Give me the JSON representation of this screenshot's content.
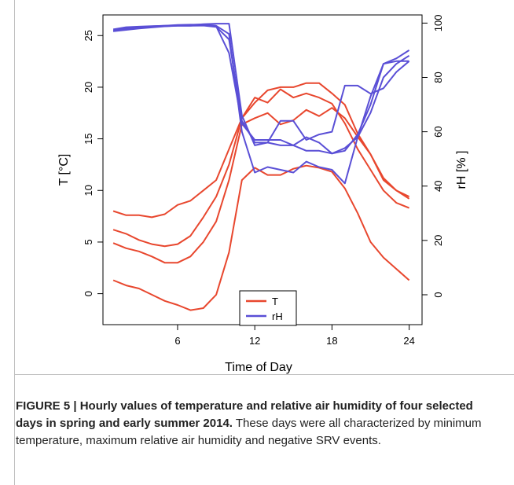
{
  "chart_data": {
    "type": "line",
    "xlabel": "Time of Day",
    "ylabel_left": "T [°C]",
    "ylabel_right": "rH [% ]",
    "x_ticks": [
      "6",
      "12",
      "18",
      "24"
    ],
    "x_tick_values": [
      6,
      12,
      18,
      24
    ],
    "xlim": [
      0.2,
      25
    ],
    "y_left_ticks": [
      "0",
      "5",
      "10",
      "15",
      "20",
      "25"
    ],
    "y_left_tick_values": [
      0,
      5,
      10,
      15,
      20,
      25
    ],
    "y_left_lim": [
      -3,
      27
    ],
    "y_right_ticks": [
      "0",
      "20",
      "40",
      "60",
      "80",
      "100"
    ],
    "y_right_tick_values": [
      0,
      20,
      40,
      60,
      80,
      100
    ],
    "y_right_lim": [
      -11,
      103
    ],
    "legend": {
      "placement": "bottom-center",
      "entries": [
        {
          "label": "T",
          "color": "#e8472e"
        },
        {
          "label": "rH",
          "color": "#5a4fd6"
        }
      ]
    },
    "x": [
      1,
      2,
      3,
      4,
      5,
      6,
      7,
      8,
      9,
      10,
      11,
      12,
      13,
      14,
      15,
      16,
      17,
      18,
      19,
      20,
      21,
      22,
      23,
      24
    ],
    "series_T": [
      {
        "values": [
          8.0,
          7.6,
          7.6,
          7.4,
          7.7,
          8.6,
          9.0,
          10.0,
          11.0,
          14.0,
          17.0,
          19.0,
          18.5,
          19.8,
          19.0,
          19.4,
          19.0,
          18.4,
          16.5,
          14.0,
          12.0,
          10.0,
          8.8,
          8.3
        ]
      },
      {
        "values": [
          6.2,
          5.8,
          5.2,
          4.8,
          4.6,
          4.8,
          5.6,
          7.4,
          9.4,
          12.5,
          17.0,
          18.5,
          19.7,
          20.0,
          20.0,
          20.4,
          20.4,
          19.4,
          18.3,
          15.5,
          13.5,
          11.0,
          10.0,
          9.2
        ]
      },
      {
        "values": [
          4.9,
          4.4,
          4.1,
          3.6,
          3.0,
          3.0,
          3.6,
          5.0,
          7.0,
          11.0,
          16.4,
          17.0,
          17.5,
          16.4,
          16.8,
          17.8,
          17.2,
          18.0,
          17.0,
          15.2,
          13.5,
          11.2,
          10.0,
          9.4
        ]
      },
      {
        "values": [
          1.3,
          0.8,
          0.5,
          -0.1,
          -0.7,
          -1.1,
          -1.6,
          -1.4,
          -0.1,
          4.0,
          11.0,
          12.2,
          11.5,
          11.5,
          12.1,
          12.4,
          12.2,
          11.8,
          10.2,
          7.8,
          5.0,
          3.5,
          2.4,
          1.3
        ]
      }
    ],
    "series_rH": [
      {
        "values": [
          97.3,
          98.0,
          98.4,
          98.8,
          99.0,
          99.3,
          99.4,
          99.4,
          98.8,
          89.0,
          63.0,
          57.0,
          57.0,
          57.0,
          55.0,
          58.0,
          56.0,
          52.0,
          53.0,
          59.0,
          70.0,
          85.0,
          87.0,
          90.0
        ]
      },
      {
        "values": [
          97.7,
          98.5,
          98.7,
          98.9,
          99.0,
          99.1,
          99.3,
          99.6,
          99.8,
          99.8,
          66.0,
          55.0,
          56.0,
          55.0,
          55.0,
          53.0,
          53.0,
          52.0,
          54.0,
          58.0,
          67.0,
          80.0,
          85.0,
          88.0
        ]
      },
      {
        "values": [
          97.0,
          97.5,
          98.0,
          98.4,
          98.8,
          99.0,
          99.0,
          99.1,
          98.6,
          94.0,
          64.0,
          56.0,
          56.0,
          64.0,
          64.0,
          57.0,
          59.0,
          60.0,
          77.0,
          77.0,
          74.0,
          76.0,
          82.0,
          86.0
        ]
      },
      {
        "values": [
          97.0,
          98.0,
          98.5,
          98.7,
          98.9,
          99.0,
          99.0,
          99.4,
          99.0,
          96.0,
          60.0,
          45.0,
          47.0,
          46.0,
          45.0,
          49.0,
          47.0,
          46.0,
          41.0,
          58.0,
          73.0,
          85.0,
          86.0,
          86.0
        ]
      }
    ]
  },
  "caption": {
    "bold": "FIGURE 5 | Hourly values of temperature and relative air humidity of four selected days in spring and early summer 2014.",
    "normal": " These days were all characterized by minimum temperature, maximum relative air humidity and negative SRV events."
  }
}
